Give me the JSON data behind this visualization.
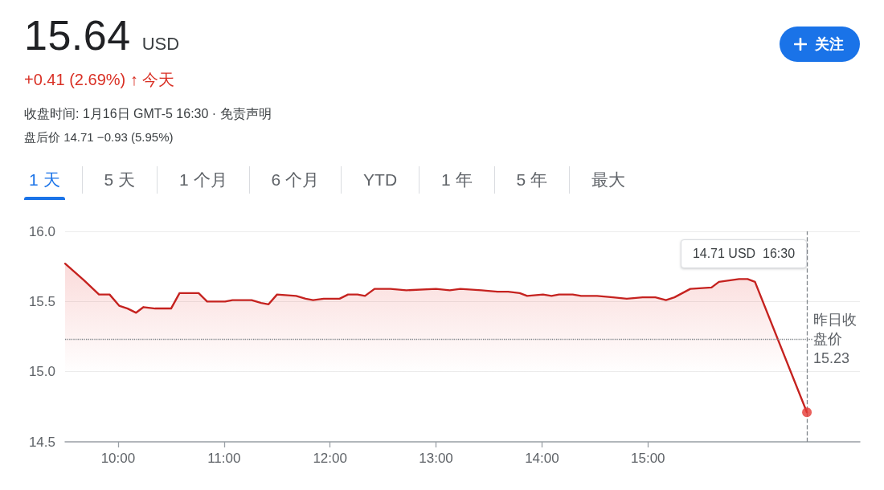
{
  "chart_data": {
    "type": "area",
    "title": "15.64 USD",
    "subtitle": "+0.41 (2.69%) ↑ 今天",
    "annotations": [
      "收盘时间: 1月16日 GMT-5 16:30 · 免责声明",
      "盘后价 14.71 −0.93 (5.95%)",
      "1 天",
      "5 天",
      "1 个月",
      "6 个月",
      "YTD",
      "1 年",
      "5 年",
      "最大",
      "关注"
    ],
    "series": [
      {
        "color": "#c5221f",
        "x": [
          9.5,
          9.68,
          9.82,
          9.92,
          10.01,
          10.09,
          10.17,
          10.24,
          10.35,
          10.5,
          10.58,
          10.76,
          10.84,
          11.01,
          11.08,
          11.26,
          11.35,
          11.42,
          11.5,
          11.68,
          11.77,
          11.84,
          11.94,
          12.09,
          12.17,
          12.26,
          12.33,
          12.42,
          12.57,
          12.72,
          13.0,
          13.13,
          13.23,
          13.43,
          13.58,
          13.68,
          13.79,
          13.86,
          14.01,
          14.09,
          14.16,
          14.29,
          14.37,
          14.52,
          14.67,
          14.8,
          14.95,
          15.07,
          15.17,
          15.25,
          15.4,
          15.6,
          15.67,
          15.86,
          15.94,
          16.01,
          16.5
        ],
        "values": [
          15.77,
          15.65,
          15.55,
          15.55,
          15.47,
          15.45,
          15.42,
          15.46,
          15.45,
          15.45,
          15.56,
          15.56,
          15.5,
          15.5,
          15.51,
          15.51,
          15.49,
          15.48,
          15.55,
          15.54,
          15.52,
          15.51,
          15.52,
          15.52,
          15.55,
          15.55,
          15.54,
          15.59,
          15.59,
          15.58,
          15.59,
          15.58,
          15.59,
          15.58,
          15.57,
          15.57,
          15.56,
          15.54,
          15.55,
          15.54,
          15.55,
          15.55,
          15.54,
          15.54,
          15.53,
          15.52,
          15.53,
          15.53,
          15.51,
          15.53,
          15.59,
          15.6,
          15.64,
          15.66,
          15.66,
          15.64,
          14.71
        ]
      },
      {
        "type": "scatter",
        "color": "#e53935",
        "marker": "circle",
        "x": [
          16.5
        ],
        "values": [
          14.71
        ]
      }
    ],
    "xlim": [
      9.5,
      17
    ],
    "xticks": [
      {
        "value": 10,
        "label": "10:00"
      },
      {
        "value": 11,
        "label": "11:00"
      },
      {
        "value": 12,
        "label": "12:00"
      },
      {
        "value": 13,
        "label": "13:00"
      },
      {
        "value": 14,
        "label": "14:00"
      },
      {
        "value": 15,
        "label": "15:00"
      }
    ],
    "ylim": [
      14.5,
      16
    ],
    "yticks": [
      14.5,
      {
        "value": 15,
        "label": "15.0"
      },
      15.5,
      {
        "value": 16,
        "label": "16.0"
      }
    ],
    "ref_lines": [
      {
        "axis": "y",
        "value": 15.23,
        "label": "昨日收盘价\n15.23",
        "line_style": "dotted",
        "color": "#80868b"
      },
      {
        "axis": "x",
        "value": 16.5,
        "label": "14.71 USD  16:30",
        "line_style": "dashed",
        "color": "#80868b"
      }
    ],
    "grid": "y",
    "marker": "none",
    "line_style": "solid"
  }
}
